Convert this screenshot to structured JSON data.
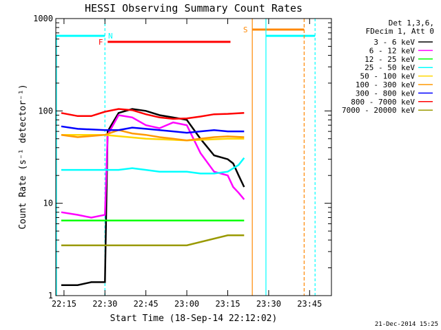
{
  "chart_data": {
    "type": "line",
    "title": "HESSI Observing Summary Count Rates",
    "xlabel": "Start Time (18-Sep-14 22:12:02)",
    "ylabel": "Count Rate (s⁻¹ detector⁻¹)",
    "yscale": "log",
    "ylim": [
      1,
      1000
    ],
    "xlim": [
      "22:12",
      "23:53"
    ],
    "x_ticks": [
      "22:15",
      "22:30",
      "22:45",
      "23:00",
      "23:15",
      "23:30",
      "23:45"
    ],
    "y_ticks": [
      "1",
      "10",
      "100",
      "1000"
    ],
    "legend_position": "top-right",
    "legend_header": [
      "Det 1,3,6,",
      "FDecim 1, Att 0"
    ],
    "footer_date": "21-Dec-2014 15:25",
    "colors": {
      "3-6": "#000000",
      "6-12": "#ff00ff",
      "12-25": "#00ff00",
      "25-50": "#00ffff",
      "50-100": "#ffd700",
      "100-300": "#ff9900",
      "300-800": "#0000ff",
      "800-7000": "#ff0000",
      "7000-20000": "#999900",
      "flag_N": "#00ffff",
      "flag_F": "#ff0000",
      "flag_S": "#ff8800"
    },
    "series": [
      {
        "name": "3 - 6 keV",
        "color": "#000000",
        "x": [
          "22:14",
          "22:20",
          "22:25",
          "22:30",
          "22:31",
          "22:35",
          "22:40",
          "22:45",
          "22:50",
          "22:55",
          "23:00",
          "23:05",
          "23:10",
          "23:15",
          "23:17",
          "23:19",
          "23:21"
        ],
        "y": [
          1.3,
          1.3,
          1.4,
          1.4,
          60,
          95,
          105,
          100,
          90,
          85,
          80,
          50,
          33,
          30,
          27,
          20,
          15
        ]
      },
      {
        "name": "6 - 12 keV",
        "color": "#ff00ff",
        "x": [
          "22:14",
          "22:20",
          "22:25",
          "22:30",
          "22:31",
          "22:35",
          "22:40",
          "22:45",
          "22:50",
          "22:55",
          "23:00",
          "23:05",
          "23:10",
          "23:15",
          "23:17",
          "23:19",
          "23:21"
        ],
        "y": [
          8,
          7.5,
          7,
          7.5,
          55,
          90,
          85,
          70,
          65,
          75,
          70,
          35,
          22,
          20,
          15,
          13,
          11
        ]
      },
      {
        "name": "12 - 25 keV",
        "color": "#00ff00",
        "x": [
          "22:14",
          "22:30",
          "22:45",
          "23:00",
          "23:15",
          "23:21"
        ],
        "y": [
          6.5,
          6.5,
          6.5,
          6.5,
          6.5,
          6.5
        ]
      },
      {
        "name": "25 - 50 keV",
        "color": "#00ffff",
        "x": [
          "22:14",
          "22:20",
          "22:30",
          "22:35",
          "22:40",
          "22:45",
          "22:50",
          "22:55",
          "23:00",
          "23:05",
          "23:10",
          "23:15",
          "23:19",
          "23:21"
        ],
        "y": [
          23,
          23,
          23,
          23,
          24,
          23,
          22,
          22,
          22,
          21,
          21,
          22,
          26,
          31
        ]
      },
      {
        "name": "50 - 100 keV",
        "color": "#ffd700",
        "x": [
          "22:14",
          "22:30",
          "22:45",
          "23:00",
          "23:15",
          "23:21"
        ],
        "y": [
          55,
          55,
          50,
          48,
          50,
          50
        ]
      },
      {
        "name": "100 - 300 keV",
        "color": "#ff9900",
        "x": [
          "22:14",
          "22:20",
          "22:30",
          "22:35",
          "22:40",
          "22:45",
          "22:50",
          "22:55",
          "23:00",
          "23:05",
          "23:10",
          "23:15",
          "23:21"
        ],
        "y": [
          55,
          52,
          55,
          62,
          57,
          55,
          52,
          50,
          48,
          50,
          52,
          53,
          52
        ]
      },
      {
        "name": "300 - 800 keV",
        "color": "#0000ff",
        "x": [
          "22:14",
          "22:20",
          "22:30",
          "22:35",
          "22:40",
          "22:45",
          "22:50",
          "22:55",
          "23:00",
          "23:05",
          "23:10",
          "23:15",
          "23:21"
        ],
        "y": [
          68,
          64,
          62,
          62,
          66,
          64,
          62,
          60,
          58,
          60,
          62,
          60,
          60
        ]
      },
      {
        "name": "800 - 7000 keV",
        "color": "#ff0000",
        "x": [
          "22:14",
          "22:20",
          "22:25",
          "22:30",
          "22:35",
          "22:40",
          "22:45",
          "22:50",
          "22:55",
          "23:00",
          "23:05",
          "23:10",
          "23:15",
          "23:21"
        ],
        "y": [
          95,
          88,
          88,
          98,
          105,
          102,
          92,
          85,
          82,
          83,
          87,
          92,
          93,
          95
        ]
      },
      {
        "name": "7000 - 20000 keV",
        "color": "#999900",
        "x": [
          "22:14",
          "22:30",
          "22:45",
          "23:00",
          "23:15",
          "23:21"
        ],
        "y": [
          3.5,
          3.5,
          3.5,
          3.5,
          4.5,
          4.5
        ]
      }
    ],
    "flags": [
      {
        "label": "N",
        "color": "#00ffff"
      },
      {
        "label": "F",
        "color": "#ff0000"
      },
      {
        "label": "S",
        "color": "#ff8800"
      }
    ]
  }
}
